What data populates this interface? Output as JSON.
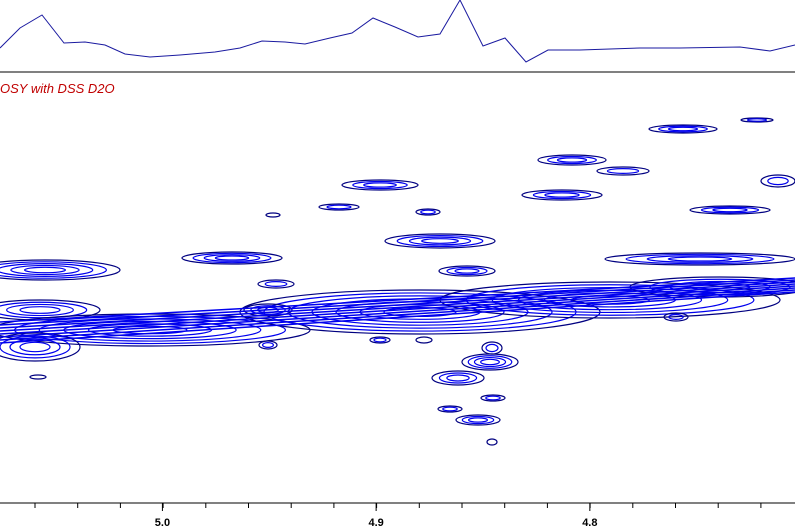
{
  "chart_data": {
    "type": "contour",
    "title": "OSY with DSS D2O",
    "xlim": [
      5.076,
      4.704
    ],
    "xticks": [
      {
        "value": 5.0,
        "label": "5.0"
      },
      4.9,
      4.8
    ],
    "color": "#0000ee"
  }
}
